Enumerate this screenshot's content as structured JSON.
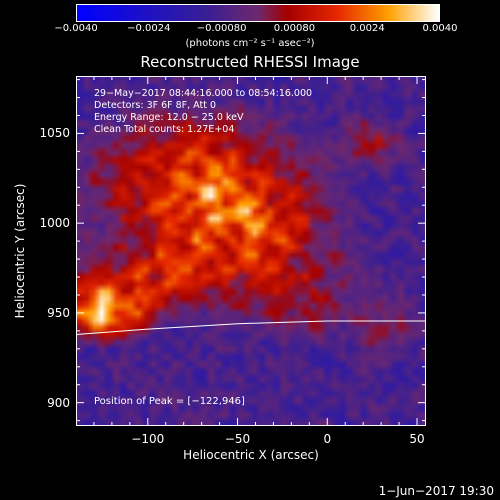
{
  "chart_data": {
    "type": "heatmap",
    "title": "Reconstructed RHESSI Image",
    "xlabel": "Heliocentric X (arcsec)",
    "ylabel": "Heliocentric Y (arcsec)",
    "xlim": [
      -140,
      55
    ],
    "ylim": [
      887,
      1082
    ],
    "x_ticks": [
      {
        "value": -100,
        "label": "−100"
      },
      {
        "value": -50,
        "label": "−50"
      },
      {
        "value": 0,
        "label": "0"
      },
      {
        "value": 50,
        "label": "50"
      }
    ],
    "y_ticks": [
      {
        "value": 900,
        "label": "900"
      },
      {
        "value": 950,
        "label": "950"
      },
      {
        "value": 1000,
        "label": "1000"
      },
      {
        "value": 1050,
        "label": "1050"
      }
    ],
    "colorbar": {
      "min": -0.004,
      "max": 0.004,
      "ticks": [
        {
          "value": -0.004,
          "label": "−0.0040"
        },
        {
          "value": -0.0024,
          "label": "−0.0024"
        },
        {
          "value": -0.0008,
          "label": "−0.00080"
        },
        {
          "value": 0.0008,
          "label": "0.00080"
        },
        {
          "value": 0.0024,
          "label": "0.0024"
        },
        {
          "value": 0.004,
          "label": "0.0040"
        }
      ],
      "unit_label": "(photons cm⁻² s⁻¹ asec⁻²)",
      "colormap": "blue-purple-red-yellow-white"
    },
    "info_lines": [
      "29−May−2017 08:44:16.000 to 08:54:16.000",
      "Detectors: 3F 6F 8F, Att 0",
      "Energy Range: 12.0 − 25.0 keV",
      "Clean    Total counts: 1.27E+04"
    ],
    "peak_text": "Position of Peak = [−122,946]",
    "peak": {
      "x": -122,
      "y": 946
    },
    "limb_line": [
      {
        "x": -140,
        "y": 938
      },
      {
        "x": -100,
        "y": 941
      },
      {
        "x": -50,
        "y": 944
      },
      {
        "x": 0,
        "y": 945.5
      },
      {
        "x": 55,
        "y": 945.5
      }
    ]
  },
  "footer": {
    "date": "1−Jun−2017 19:30"
  }
}
